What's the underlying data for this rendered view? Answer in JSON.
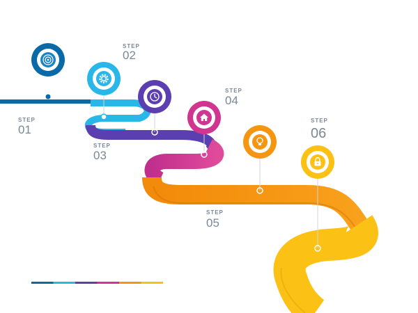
{
  "steps": [
    {
      "word": "STEP",
      "number": "01",
      "color": "#0a6aa8",
      "icon": "target-icon"
    },
    {
      "word": "STEP",
      "number": "02",
      "color": "#29b6e8",
      "icon": "gear-icon"
    },
    {
      "word": "STEP",
      "number": "03",
      "color": "#5b3fb0",
      "icon": "clock-icon"
    },
    {
      "word": "STEP",
      "number": "04",
      "color": "#d0358f",
      "icon": "home-icon"
    },
    {
      "word": "STEP",
      "number": "05",
      "color": "#f6950f",
      "icon": "lightbulb-icon"
    },
    {
      "word": "STEP",
      "number": "06",
      "color": "#fbc114",
      "icon": "lock-icon"
    }
  ],
  "legend_colors": [
    "#0a6aa8",
    "#29b6e8",
    "#5b3fb0",
    "#d0358f",
    "#f6950f",
    "#fbc114"
  ]
}
